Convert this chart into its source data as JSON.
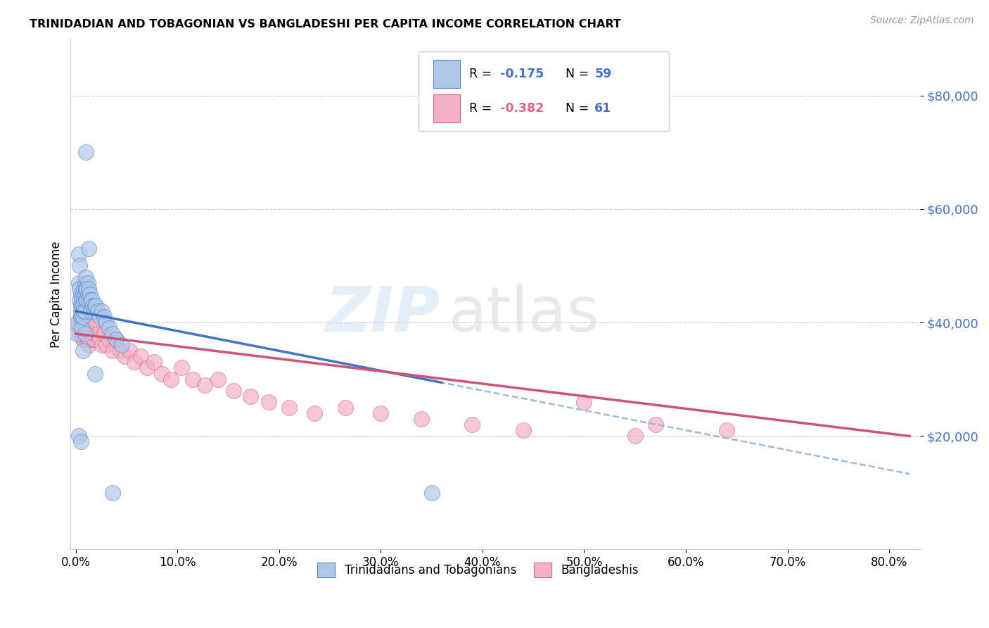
{
  "title": "TRINIDADIAN AND TOBAGONIAN VS BANGLADESHI PER CAPITA INCOME CORRELATION CHART",
  "source": "Source: ZipAtlas.com",
  "ylabel": "Per Capita Income",
  "color_blue_fill": "#aec6e8",
  "color_pink_fill": "#f4b0c4",
  "color_blue_edge": "#5588cc",
  "color_pink_edge": "#dd6688",
  "color_blue_line": "#4472C4",
  "color_pink_line": "#cc5577",
  "color_dashed": "#99bbdd",
  "color_grid": "#cccccc",
  "color_ytick": "#4472C4",
  "xmin": -0.005,
  "xmax": 0.83,
  "ymin": 0,
  "ymax": 90000,
  "ytick_values": [
    20000,
    40000,
    60000,
    80000
  ],
  "ytick_labels": [
    "$20,000",
    "$40,000",
    "$60,000",
    "$80,000"
  ],
  "xtick_values": [
    0.0,
    0.1,
    0.2,
    0.3,
    0.4,
    0.5,
    0.6,
    0.7,
    0.8
  ],
  "xtick_labels": [
    "0.0%",
    "10.0%",
    "20.0%",
    "30.0%",
    "40.0%",
    "50.0%",
    "60.0%",
    "70.0%",
    "80.0%"
  ],
  "tri_x": [
    0.001,
    0.002,
    0.003,
    0.003,
    0.004,
    0.004,
    0.004,
    0.005,
    0.005,
    0.005,
    0.005,
    0.006,
    0.006,
    0.006,
    0.006,
    0.007,
    0.007,
    0.007,
    0.008,
    0.008,
    0.008,
    0.009,
    0.009,
    0.009,
    0.01,
    0.01,
    0.01,
    0.011,
    0.011,
    0.012,
    0.012,
    0.013,
    0.013,
    0.014,
    0.015,
    0.015,
    0.016,
    0.017,
    0.018,
    0.019,
    0.02,
    0.022,
    0.024,
    0.026,
    0.028,
    0.03,
    0.033,
    0.036,
    0.04,
    0.045,
    0.003,
    0.005,
    0.007,
    0.009,
    0.013,
    0.019,
    0.036,
    0.01,
    0.35
  ],
  "tri_y": [
    38000,
    40000,
    52000,
    47000,
    50000,
    46000,
    44000,
    45000,
    43000,
    42000,
    41000,
    44000,
    43000,
    41000,
    39000,
    45000,
    43000,
    41000,
    46000,
    44000,
    42000,
    47000,
    45000,
    42000,
    48000,
    46000,
    44000,
    46000,
    44000,
    47000,
    45000,
    46000,
    44000,
    45000,
    44000,
    42000,
    44000,
    43000,
    42000,
    43000,
    43000,
    42000,
    41000,
    42000,
    41000,
    40000,
    39000,
    38000,
    37000,
    36000,
    20000,
    19000,
    35000,
    38000,
    53000,
    31000,
    10000,
    70000,
    10000
  ],
  "ban_x": [
    0.003,
    0.004,
    0.005,
    0.005,
    0.006,
    0.006,
    0.007,
    0.007,
    0.008,
    0.008,
    0.009,
    0.009,
    0.01,
    0.01,
    0.011,
    0.012,
    0.013,
    0.013,
    0.014,
    0.015,
    0.016,
    0.017,
    0.018,
    0.019,
    0.02,
    0.022,
    0.024,
    0.026,
    0.028,
    0.03,
    0.033,
    0.036,
    0.04,
    0.044,
    0.048,
    0.053,
    0.058,
    0.064,
    0.07,
    0.077,
    0.085,
    0.094,
    0.104,
    0.115,
    0.127,
    0.14,
    0.155,
    0.172,
    0.19,
    0.21,
    0.235,
    0.265,
    0.3,
    0.34,
    0.39,
    0.44,
    0.5,
    0.57,
    0.64,
    0.005,
    0.55
  ],
  "ban_y": [
    40000,
    38000,
    41000,
    39000,
    38000,
    40000,
    37000,
    39000,
    38000,
    37000,
    40000,
    38000,
    37000,
    39000,
    38000,
    37000,
    36000,
    38000,
    37000,
    39000,
    38000,
    37000,
    37000,
    38000,
    40000,
    38000,
    37000,
    36000,
    38000,
    36000,
    37000,
    35000,
    37000,
    35000,
    34000,
    35000,
    33000,
    34000,
    32000,
    33000,
    31000,
    30000,
    32000,
    30000,
    29000,
    30000,
    28000,
    27000,
    26000,
    25000,
    24000,
    25000,
    24000,
    23000,
    22000,
    21000,
    26000,
    22000,
    21000,
    41000,
    20000
  ]
}
